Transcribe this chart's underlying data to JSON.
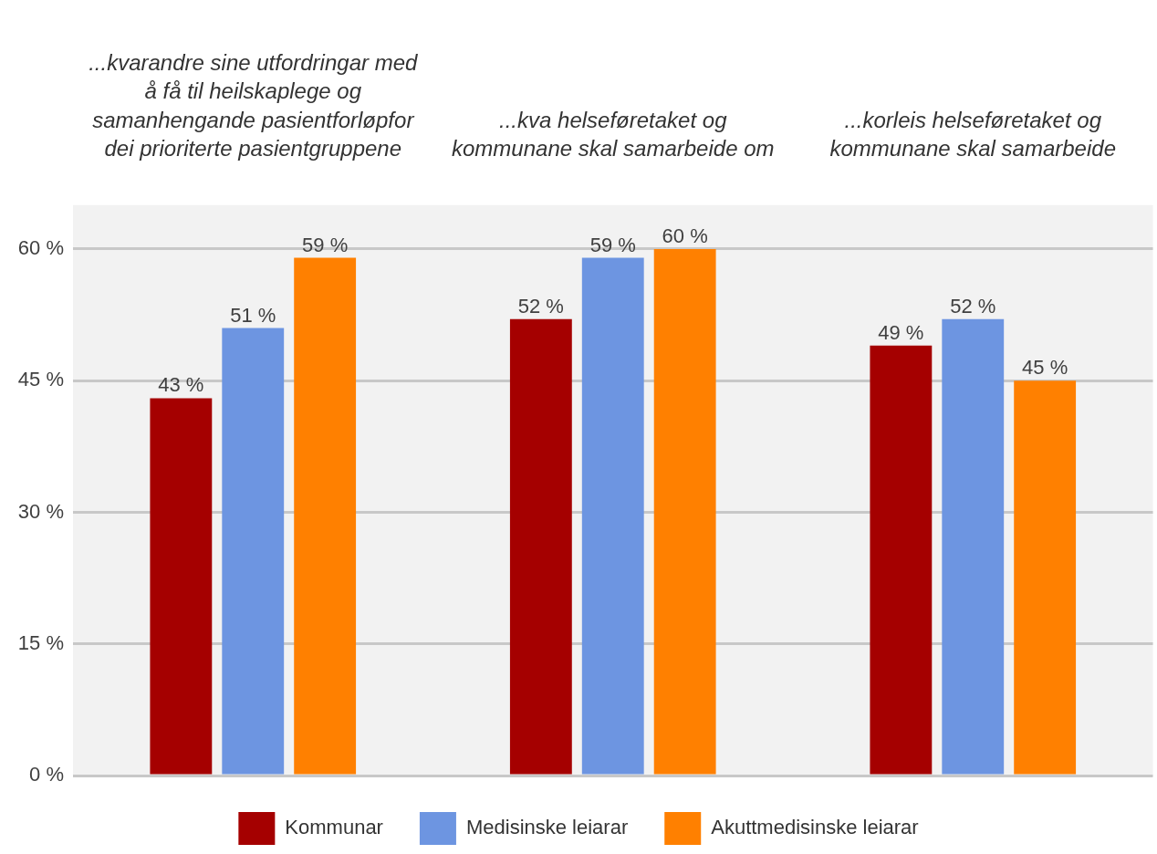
{
  "chart_data": {
    "type": "bar",
    "categories": [
      "...kvarandre sine utfordringar med å få til heilskaplege og samanhengande pasientforløpfor dei prioriterte pasientgruppene",
      "...kva helseføretaket og kommunane skal samarbeide om",
      "...korleis helseføretaket og kommunane skal samarbeide"
    ],
    "series": [
      {
        "name": "Kommunar",
        "color": "#a50000",
        "values": [
          43,
          52,
          49
        ],
        "value_labels": [
          "43 %",
          "52 %",
          "49 %"
        ]
      },
      {
        "name": "Medisinske leiarar",
        "color": "#6d95e1",
        "values": [
          51,
          59,
          52
        ],
        "value_labels": [
          "51 %",
          "59 %",
          "52 %"
        ]
      },
      {
        "name": "Akuttmedisinske leiarar",
        "color": "#ff8000",
        "values": [
          59,
          60,
          45
        ],
        "value_labels": [
          "59 %",
          "60 %",
          "45 %"
        ]
      }
    ],
    "ylim": [
      0,
      65
    ],
    "yticks": [
      {
        "value": 0,
        "label": "0 %"
      },
      {
        "value": 15,
        "label": "15 %"
      },
      {
        "value": 30,
        "label": "30 %"
      },
      {
        "value": 45,
        "label": "45 %"
      },
      {
        "value": 60,
        "label": "60 %"
      }
    ],
    "grid": "y",
    "legend": "bottom"
  }
}
